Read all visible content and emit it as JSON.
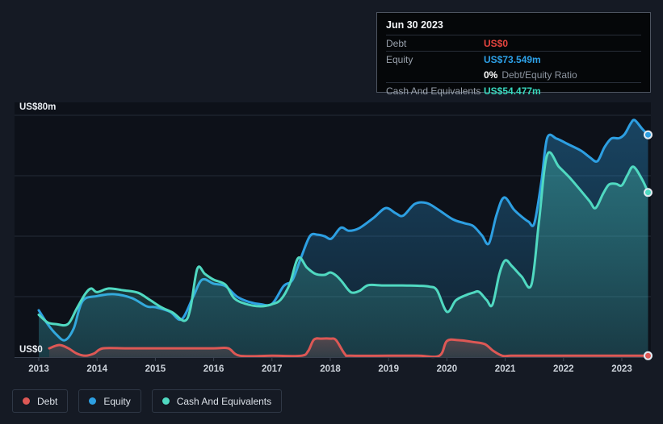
{
  "tooltip": {
    "date": "Jun 30 2023",
    "debt_label": "Debt",
    "debt_value": "US$0",
    "equity_label": "Equity",
    "equity_value": "US$73.549m",
    "ratio_value": "0%",
    "ratio_label": "Debt/Equity Ratio",
    "cash_label": "Cash And Equivalents",
    "cash_value": "US$54.477m"
  },
  "legend": {
    "items": [
      {
        "label": "Debt",
        "color": "#dd5855"
      },
      {
        "label": "Equity",
        "color": "#2d9fe2"
      },
      {
        "label": "Cash And Equivalents",
        "color": "#50d9c1"
      }
    ]
  },
  "chart_data": {
    "type": "area",
    "unit": "US$ millions",
    "x_axis": {
      "ticks": [
        "2013",
        "2014",
        "2015",
        "2016",
        "2017",
        "2018",
        "2019",
        "2020",
        "2021",
        "2022",
        "2023"
      ]
    },
    "y_axis": {
      "min": 0,
      "max": 80,
      "gridline_step": 20,
      "top_label": "US$80m",
      "zero_label": "US$0"
    },
    "draw_order": [
      "Equity",
      "Cash And Equivalents",
      "Debt"
    ],
    "series": [
      {
        "name": "Debt",
        "color": "#dd5855",
        "points": [
          [
            2013.18,
            2.9
          ],
          [
            2013.35,
            4.0
          ],
          [
            2013.5,
            3.0
          ],
          [
            2013.65,
            1.2
          ],
          [
            2013.8,
            0.2
          ],
          [
            2013.95,
            1.2
          ],
          [
            2014.1,
            2.9
          ],
          [
            2014.5,
            2.9
          ],
          [
            2015.0,
            2.9
          ],
          [
            2015.5,
            2.9
          ],
          [
            2016.0,
            2.9
          ],
          [
            2016.25,
            2.9
          ],
          [
            2016.45,
            0
          ],
          [
            2017.0,
            0
          ],
          [
            2017.5,
            0
          ],
          [
            2017.62,
            2.0
          ],
          [
            2017.72,
            5.8
          ],
          [
            2017.85,
            6.1
          ],
          [
            2018.0,
            6.1
          ],
          [
            2018.1,
            5.6
          ],
          [
            2018.25,
            1.0
          ],
          [
            2018.35,
            0
          ],
          [
            2019.0,
            0
          ],
          [
            2019.5,
            0
          ],
          [
            2019.87,
            0
          ],
          [
            2020.0,
            5.3
          ],
          [
            2020.2,
            5.6
          ],
          [
            2020.45,
            5.0
          ],
          [
            2020.65,
            4.3
          ],
          [
            2020.8,
            2.0
          ],
          [
            2020.95,
            0.3
          ],
          [
            2021.1,
            0
          ],
          [
            2021.5,
            0
          ],
          [
            2022.0,
            0
          ],
          [
            2022.5,
            0
          ],
          [
            2023.0,
            0
          ],
          [
            2023.45,
            0
          ]
        ]
      },
      {
        "name": "Equity",
        "color": "#2d9fe2",
        "points": [
          [
            2013.0,
            15.5
          ],
          [
            2013.15,
            11.0
          ],
          [
            2013.3,
            7.5
          ],
          [
            2013.45,
            5.6
          ],
          [
            2013.6,
            9.5
          ],
          [
            2013.75,
            18.5
          ],
          [
            2014.0,
            20.2
          ],
          [
            2014.3,
            20.8
          ],
          [
            2014.6,
            19.5
          ],
          [
            2014.85,
            16.8
          ],
          [
            2015.0,
            16.5
          ],
          [
            2015.25,
            15.0
          ],
          [
            2015.45,
            12.5
          ],
          [
            2015.65,
            20.0
          ],
          [
            2015.8,
            25.6
          ],
          [
            2016.0,
            24.3
          ],
          [
            2016.2,
            23.5
          ],
          [
            2016.4,
            20.0
          ],
          [
            2016.6,
            18.3
          ],
          [
            2016.8,
            17.5
          ],
          [
            2017.0,
            17.6
          ],
          [
            2017.2,
            23.5
          ],
          [
            2017.35,
            25.5
          ],
          [
            2017.5,
            33.0
          ],
          [
            2017.65,
            40.0
          ],
          [
            2017.78,
            40.5
          ],
          [
            2017.9,
            40.0
          ],
          [
            2018.02,
            39.2
          ],
          [
            2018.18,
            42.8
          ],
          [
            2018.32,
            41.8
          ],
          [
            2018.5,
            42.7
          ],
          [
            2018.75,
            46.2
          ],
          [
            2018.95,
            49.3
          ],
          [
            2019.12,
            47.6
          ],
          [
            2019.25,
            46.8
          ],
          [
            2019.45,
            50.7
          ],
          [
            2019.65,
            51.0
          ],
          [
            2019.85,
            48.8
          ],
          [
            2020.1,
            45.6
          ],
          [
            2020.3,
            44.3
          ],
          [
            2020.45,
            43.4
          ],
          [
            2020.6,
            40.3
          ],
          [
            2020.72,
            37.6
          ],
          [
            2020.85,
            47.0
          ],
          [
            2020.98,
            52.8
          ],
          [
            2021.15,
            48.8
          ],
          [
            2021.28,
            46.5
          ],
          [
            2021.4,
            44.8
          ],
          [
            2021.5,
            44.3
          ],
          [
            2021.62,
            58.0
          ],
          [
            2021.72,
            72.5
          ],
          [
            2021.88,
            72.3
          ],
          [
            2022.05,
            70.7
          ],
          [
            2022.3,
            68.3
          ],
          [
            2022.45,
            66.1
          ],
          [
            2022.58,
            64.8
          ],
          [
            2022.7,
            69.3
          ],
          [
            2022.82,
            72.3
          ],
          [
            2022.95,
            72.4
          ],
          [
            2023.05,
            73.8
          ],
          [
            2023.15,
            77.2
          ],
          [
            2023.22,
            78.4
          ],
          [
            2023.35,
            75.5
          ],
          [
            2023.45,
            73.549
          ]
        ]
      },
      {
        "name": "Cash And Equivalents",
        "color": "#50d9c1",
        "points": [
          [
            2013.0,
            14.0
          ],
          [
            2013.15,
            11.5
          ],
          [
            2013.3,
            10.9
          ],
          [
            2013.5,
            10.9
          ],
          [
            2013.65,
            16.0
          ],
          [
            2013.8,
            21.0
          ],
          [
            2013.9,
            22.7
          ],
          [
            2014.0,
            21.5
          ],
          [
            2014.2,
            22.7
          ],
          [
            2014.45,
            22.1
          ],
          [
            2014.7,
            21.3
          ],
          [
            2014.9,
            19.0
          ],
          [
            2015.1,
            16.5
          ],
          [
            2015.3,
            14.7
          ],
          [
            2015.5,
            12.0
          ],
          [
            2015.6,
            16.0
          ],
          [
            2015.72,
            29.3
          ],
          [
            2015.85,
            27.5
          ],
          [
            2016.0,
            25.6
          ],
          [
            2016.2,
            24.0
          ],
          [
            2016.35,
            19.5
          ],
          [
            2016.55,
            17.6
          ],
          [
            2016.8,
            16.8
          ],
          [
            2017.0,
            17.5
          ],
          [
            2017.15,
            19.0
          ],
          [
            2017.3,
            24.0
          ],
          [
            2017.45,
            32.8
          ],
          [
            2017.6,
            29.6
          ],
          [
            2017.75,
            27.5
          ],
          [
            2017.9,
            27.2
          ],
          [
            2018.0,
            28.0
          ],
          [
            2018.1,
            27.0
          ],
          [
            2018.2,
            25.0
          ],
          [
            2018.35,
            21.5
          ],
          [
            2018.5,
            21.9
          ],
          [
            2018.65,
            23.8
          ],
          [
            2018.9,
            23.7
          ],
          [
            2019.2,
            23.7
          ],
          [
            2019.5,
            23.6
          ],
          [
            2019.7,
            23.3
          ],
          [
            2019.83,
            22.1
          ],
          [
            2020.0,
            15.0
          ],
          [
            2020.15,
            18.7
          ],
          [
            2020.3,
            20.3
          ],
          [
            2020.45,
            21.3
          ],
          [
            2020.55,
            21.6
          ],
          [
            2020.68,
            18.9
          ],
          [
            2020.78,
            17.3
          ],
          [
            2020.9,
            27.5
          ],
          [
            2021.0,
            32.0
          ],
          [
            2021.12,
            30.0
          ],
          [
            2021.28,
            26.7
          ],
          [
            2021.45,
            24.0
          ],
          [
            2021.58,
            45.0
          ],
          [
            2021.72,
            66.9
          ],
          [
            2021.92,
            63.0
          ],
          [
            2022.1,
            59.5
          ],
          [
            2022.3,
            55.0
          ],
          [
            2022.45,
            51.5
          ],
          [
            2022.55,
            49.3
          ],
          [
            2022.68,
            54.1
          ],
          [
            2022.78,
            57.1
          ],
          [
            2022.9,
            57.3
          ],
          [
            2023.0,
            56.8
          ],
          [
            2023.1,
            60.3
          ],
          [
            2023.2,
            63.0
          ],
          [
            2023.35,
            58.7
          ],
          [
            2023.45,
            54.477
          ]
        ]
      }
    ]
  }
}
